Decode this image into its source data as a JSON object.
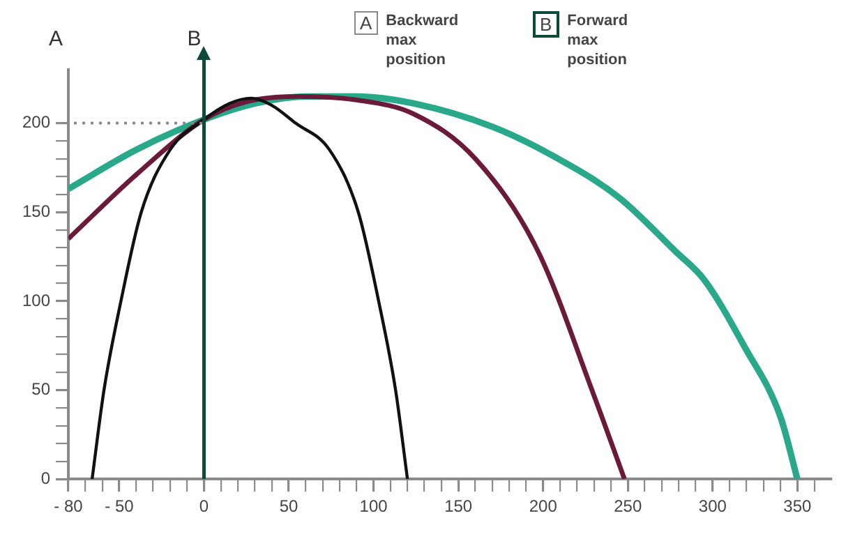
{
  "chart_data": {
    "type": "line",
    "ylabel": "A",
    "annotations": [
      "A",
      "Backward max position",
      "B",
      "Forward max position"
    ],
    "series": [
      {
        "color": "#111111",
        "x": [
          -66,
          -59,
          -49,
          -37,
          -20,
          0,
          15,
          28,
          40,
          54,
          74,
          91,
          103,
          113,
          120
        ],
        "values": [
          0,
          50,
          100,
          150,
          185,
          202,
          211,
          214,
          210,
          200,
          185,
          150,
          100,
          50,
          0
        ]
      },
      {
        "color": "#6b1a3a",
        "x": [
          -80,
          -40,
          0,
          25,
          55,
          90,
          124,
          160,
          197,
          230,
          248
        ],
        "values": [
          135,
          171,
          202,
          212,
          215,
          213,
          205,
          180,
          128,
          47,
          0
        ]
      },
      {
        "color": "#2aa88a",
        "x": [
          -80,
          -40,
          0,
          30,
          60,
          90,
          124,
          170,
          205,
          245,
          278,
          295,
          319,
          340,
          350
        ],
        "values": [
          163,
          185,
          202,
          211,
          215,
          215,
          211,
          198,
          182,
          158,
          128,
          112,
          74,
          35,
          0
        ]
      }
    ],
    "xlim": [
      -80,
      370
    ],
    "xticks": [
      {
        "value": -80,
        "label": "- 80"
      },
      {
        "value": -70,
        "label": null
      },
      {
        "value": -60,
        "label": null
      },
      {
        "value": -50,
        "label": "- 50"
      },
      {
        "value": -40,
        "label": null
      },
      {
        "value": -30,
        "label": null
      },
      {
        "value": -20,
        "label": null
      },
      {
        "value": -10,
        "label": null
      },
      0,
      {
        "value": 10,
        "label": null
      },
      {
        "value": 20,
        "label": null
      },
      {
        "value": 30,
        "label": null
      },
      {
        "value": 40,
        "label": null
      },
      50,
      {
        "value": 60,
        "label": null
      },
      {
        "value": 70,
        "label": null
      },
      {
        "value": 80,
        "label": null
      },
      {
        "value": 90,
        "label": null
      },
      100,
      {
        "value": 110,
        "label": null
      },
      {
        "value": 120,
        "label": null
      },
      {
        "value": 130,
        "label": null
      },
      {
        "value": 140,
        "label": null
      },
      150,
      {
        "value": 160,
        "label": null
      },
      {
        "value": 170,
        "label": null
      },
      {
        "value": 180,
        "label": null
      },
      {
        "value": 190,
        "label": null
      },
      200,
      {
        "value": 210,
        "label": null
      },
      {
        "value": 220,
        "label": null
      },
      {
        "value": 230,
        "label": null
      },
      {
        "value": 240,
        "label": null
      },
      250,
      {
        "value": 260,
        "label": null
      },
      {
        "value": 270,
        "label": null
      },
      {
        "value": 280,
        "label": null
      },
      {
        "value": 290,
        "label": null
      },
      300,
      {
        "value": 310,
        "label": null
      },
      {
        "value": 320,
        "label": null
      },
      {
        "value": 330,
        "label": null
      },
      {
        "value": 340,
        "label": null
      },
      350,
      {
        "value": 360,
        "label": null
      }
    ],
    "ylim": [
      0,
      230
    ],
    "yticks": [
      0,
      {
        "value": 10,
        "label": null
      },
      {
        "value": 20,
        "label": null
      },
      {
        "value": 30,
        "label": null
      },
      {
        "value": 40,
        "label": null
      },
      50,
      {
        "value": 60,
        "label": null
      },
      {
        "value": 70,
        "label": null
      },
      {
        "value": 80,
        "label": null
      },
      {
        "value": 90,
        "label": null
      },
      100,
      {
        "value": 110,
        "label": null
      },
      {
        "value": 120,
        "label": null
      },
      {
        "value": 130,
        "label": null
      },
      {
        "value": 140,
        "label": null
      },
      150,
      {
        "value": 160,
        "label": null
      },
      {
        "value": 170,
        "label": null
      },
      {
        "value": 180,
        "label": null
      },
      {
        "value": 190,
        "label": null
      },
      200
    ],
    "ref_lines": [
      {
        "axis": "y",
        "value": 200,
        "color": "#888888",
        "line_style": "dotted"
      },
      {
        "axis": "x",
        "value": 0,
        "label": "B",
        "color": "#0d4a3a",
        "line_style": "solid"
      }
    ],
    "grid": false,
    "legend": false,
    "marker": "none",
    "line_style": "solid"
  }
}
